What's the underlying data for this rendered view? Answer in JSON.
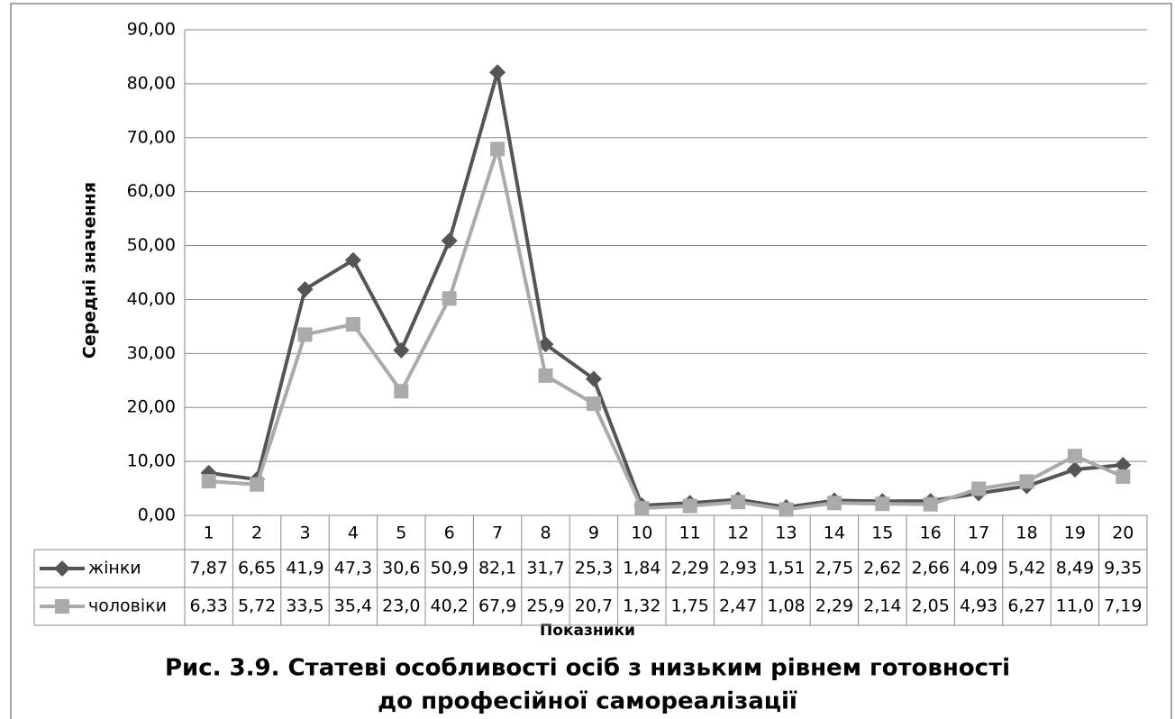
{
  "chart_data": {
    "type": "line",
    "y_label": "Середні значення",
    "x_label": "Показники",
    "caption": [
      "Рис. 3.9. Статеві особливості осіб  з низьким рівнем готовності",
      "до професійної самореалізації"
    ],
    "categories": [
      "1",
      "2",
      "3",
      "4",
      "5",
      "6",
      "7",
      "8",
      "9",
      "10",
      "11",
      "12",
      "13",
      "14",
      "15",
      "16",
      "17",
      "18",
      "19",
      "20"
    ],
    "series": [
      {
        "name": "жінки",
        "color": "#555555",
        "marker": "diamond",
        "values": [
          7.87,
          6.65,
          41.9,
          47.3,
          30.6,
          50.9,
          82.1,
          31.7,
          25.3,
          1.84,
          2.29,
          2.93,
          1.51,
          2.75,
          2.62,
          2.66,
          4.09,
          5.42,
          8.49,
          9.35
        ],
        "value_labels": [
          "7,87",
          "6,65",
          "41,9",
          "47,3",
          "30,6",
          "50,9",
          "82,1",
          "31,7",
          "25,3",
          "1,84",
          "2,29",
          "2,93",
          "1,51",
          "2,75",
          "2,62",
          "2,66",
          "4,09",
          "5,42",
          "8,49",
          "9,35"
        ]
      },
      {
        "name": "чоловіки",
        "color": "#aaaaaa",
        "marker": "square",
        "values": [
          6.33,
          5.72,
          33.5,
          35.4,
          23.0,
          40.2,
          67.9,
          25.9,
          20.7,
          1.32,
          1.75,
          2.47,
          1.08,
          2.29,
          2.14,
          2.05,
          4.93,
          6.27,
          11.0,
          7.19
        ],
        "value_labels": [
          "6,33",
          "5,72",
          "33,5",
          "35,4",
          "23,0",
          "40,2",
          "67,9",
          "25,9",
          "20,7",
          "1,32",
          "1,75",
          "2,47",
          "1,08",
          "2,29",
          "2,14",
          "2,05",
          "4,93",
          "6,27",
          "11,0",
          "7,19"
        ]
      }
    ],
    "ylim": [
      0,
      90
    ],
    "yticks": [
      {
        "value": 0,
        "label": "0,00"
      },
      {
        "value": 10,
        "label": "10,00"
      },
      {
        "value": 20,
        "label": "20,00"
      },
      {
        "value": 30,
        "label": "30,00"
      },
      {
        "value": 40,
        "label": "40,00"
      },
      {
        "value": 50,
        "label": "50,00"
      },
      {
        "value": 60,
        "label": "60,00"
      },
      {
        "value": 70,
        "label": "70,00"
      },
      {
        "value": 80,
        "label": "80,00"
      },
      {
        "value": 90,
        "label": "90,00"
      }
    ],
    "grid": true
  }
}
